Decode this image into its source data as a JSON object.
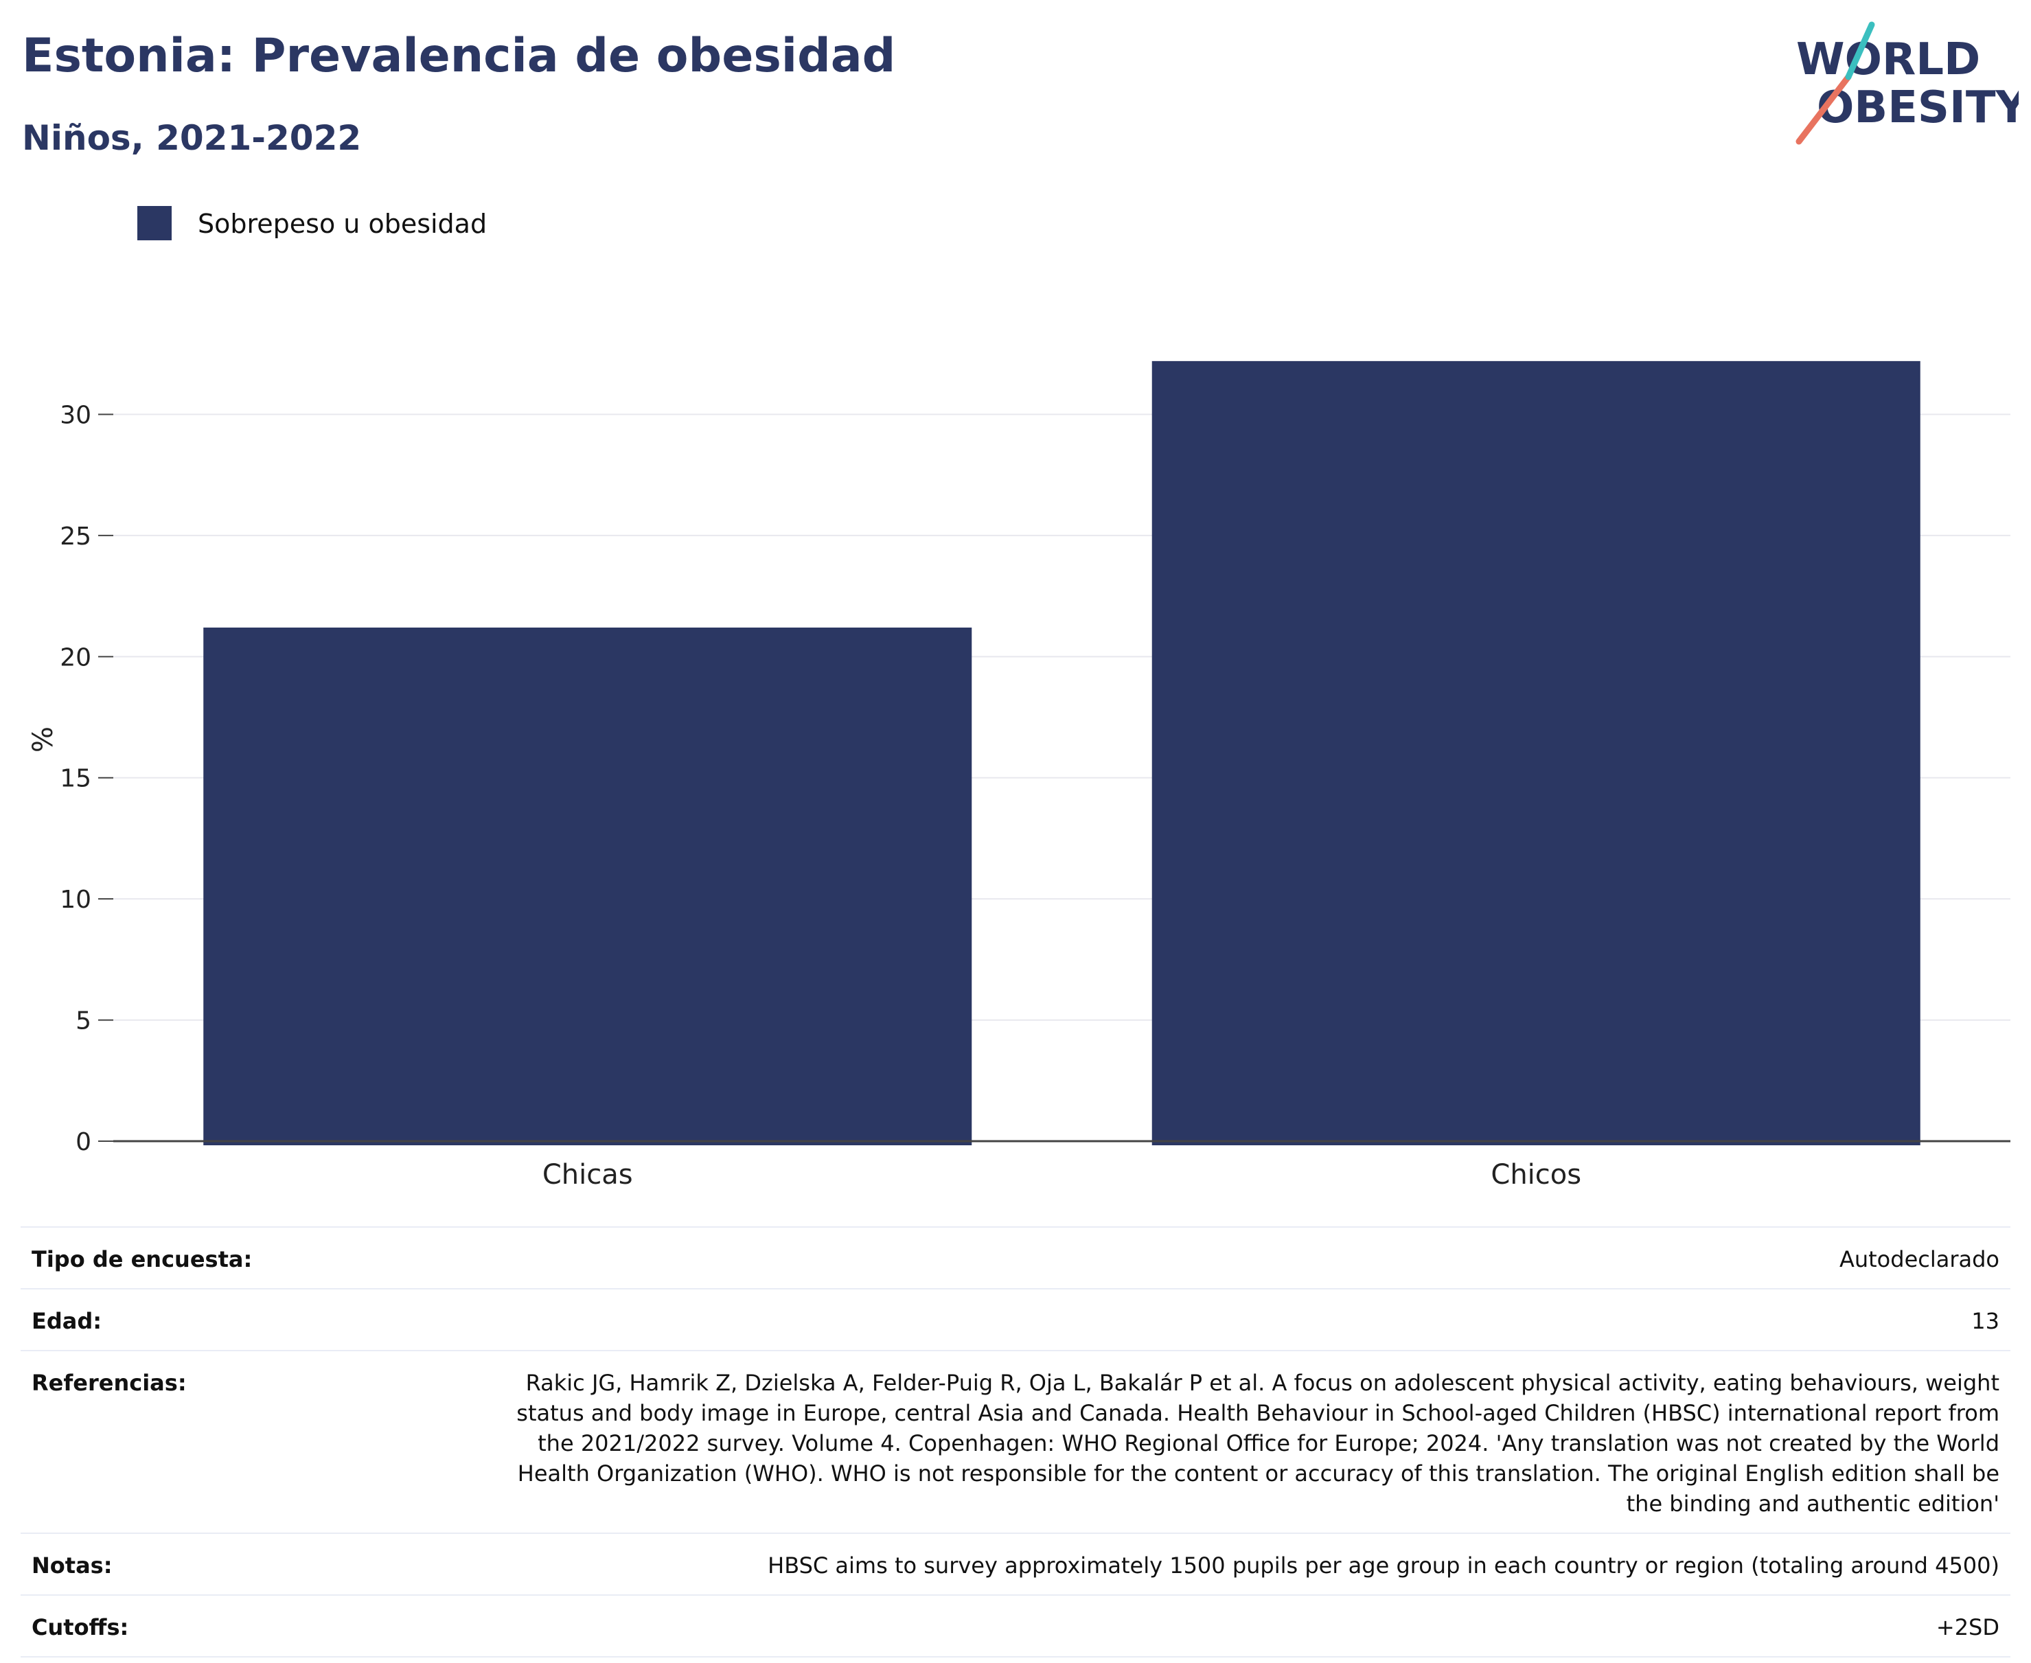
{
  "header": {
    "title": "Estonia: Prevalencia de obesidad",
    "subtitle": "Niños, 2021-2022"
  },
  "logo": {
    "line1": "WORLD",
    "line2": "OBESITY",
    "accent_teal": "#3bbfbf",
    "accent_red": "#e8735f",
    "text_color": "#2b3763"
  },
  "legend": {
    "items": [
      {
        "label": "Sobrepeso u obesidad",
        "color": "#2b3763"
      }
    ]
  },
  "chart_data": {
    "type": "bar",
    "categories": [
      "Chicas",
      "Chicos"
    ],
    "series": [
      {
        "name": "Sobrepeso u obesidad",
        "values": [
          21.2,
          32.2
        ],
        "color": "#2b3763"
      }
    ],
    "ylabel": "%",
    "xlabel": "",
    "ylim": [
      0,
      33.5
    ],
    "yticks": [
      0,
      5,
      10,
      15,
      20,
      25,
      30
    ],
    "grid": true,
    "legend_position": "top-left"
  },
  "meta": {
    "rows": [
      {
        "key": "Tipo de encuesta:",
        "value": "Autodeclarado"
      },
      {
        "key": "Edad:",
        "value": "13"
      },
      {
        "key": "Referencias:",
        "value": "Rakic JG, Hamrik Z, Dzielska A, Felder-Puig R, Oja L, Bakalár P et al. A focus on adolescent physical activity, eating behaviours, weight status and body image in Europe, central Asia and Canada. Health Behaviour in School-aged Children (HBSC) international report from the 2021/2022 survey. Volume 4. Copenhagen: WHO Regional Office for Europe; 2024. 'Any translation was not created by the World Health Organization (WHO). WHO is not responsible for the content or accuracy of this translation. The original English edition shall be the binding and authentic edition'"
      },
      {
        "key": "Notas:",
        "value": "HBSC aims to survey approximately 1500 pupils per age group in each country or region (totaling around 4500)"
      },
      {
        "key": "Cutoffs:",
        "value": "+2SD"
      }
    ]
  }
}
